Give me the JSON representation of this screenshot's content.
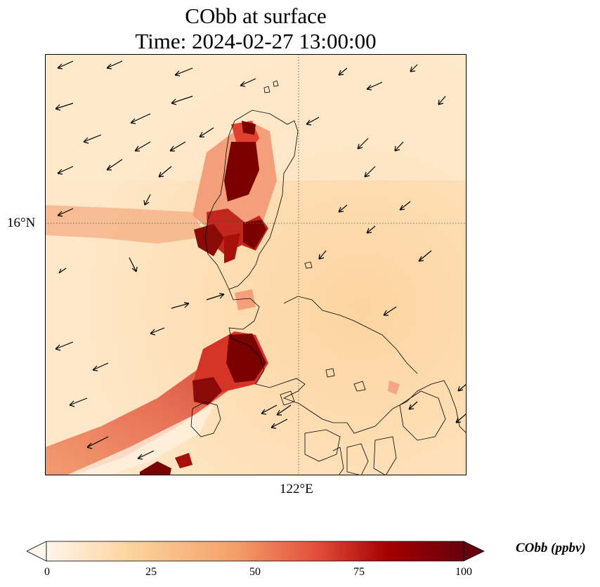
{
  "title": "CObb at surface",
  "subtitle": "Time: 2024-02-27 13:00:00",
  "lat_label": "16°N",
  "lon_label": "122°E",
  "colorbar": {
    "label": "CObb (ppbv)",
    "ticks": [
      "0",
      "25",
      "50",
      "75",
      "100"
    ],
    "min": 0,
    "max": 100,
    "colors": [
      "#fff5eb",
      "#fdd49e",
      "#f4a06a",
      "#e24d3a",
      "#a30000",
      "#67000d"
    ]
  },
  "map": {
    "variable": "CObb",
    "level": "surface",
    "gridlines": "dotted",
    "coastlines": true,
    "wind_vectors": true
  }
}
